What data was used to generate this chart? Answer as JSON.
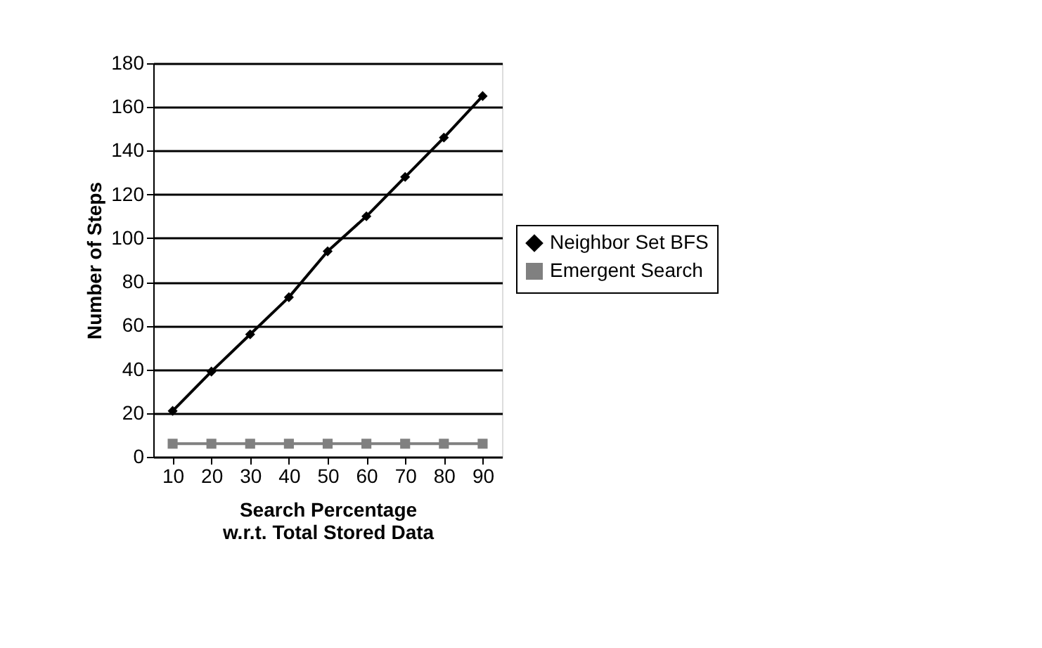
{
  "chart_data": {
    "type": "line",
    "xlabel": "Search Percentage\nw.r.t. Total Stored Data",
    "ylabel": "Number of Steps",
    "categories": [
      "10",
      "20",
      "30",
      "40",
      "50",
      "60",
      "70",
      "80",
      "90"
    ],
    "series": [
      {
        "name": "Neighbor Set BFS",
        "color": "#000000",
        "marker": "diamond",
        "values": [
          21,
          39,
          56,
          73,
          94,
          110,
          128,
          146,
          165
        ]
      },
      {
        "name": "Emergent Search",
        "color": "#808080",
        "marker": "square",
        "values": [
          6,
          6,
          6,
          6,
          6,
          6,
          6,
          6,
          6
        ]
      }
    ],
    "ylim": [
      0,
      180
    ],
    "yticks": [
      0,
      20,
      40,
      60,
      80,
      100,
      120,
      140,
      160,
      180
    ],
    "grid": "y",
    "legend": "right",
    "line_style": "solid"
  }
}
